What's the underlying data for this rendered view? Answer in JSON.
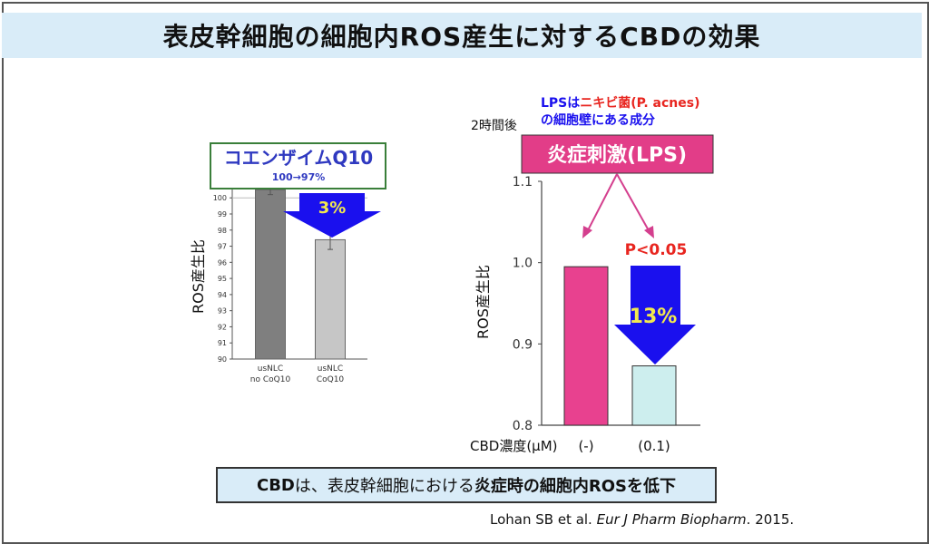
{
  "title": "表皮幹細胞の細胞内ROS産生に対するCBDの効果",
  "left_panel": {
    "label_box": "コエンザイムQ10",
    "sub_label": "100→97%",
    "decrease_label": "3%",
    "ylabel": "ROS産生比"
  },
  "right_panel": {
    "note_part1": "LPSは",
    "note_part2": "ニキビ菌(P. acnes)",
    "note_line2": "の細胞壁にある成分",
    "time_label": "2時間後",
    "stimulus_label": "炎症刺激(LPS)",
    "pvalue": "P<0.05",
    "decrease_label": "13%",
    "ylabel": "ROS産生比",
    "xaxis_prefix": "CBD濃度(μM)"
  },
  "summary": {
    "part1": "CBD",
    "part2": "は、表皮幹細胞における",
    "part3": "炎症時の細胞内ROSを低下"
  },
  "citation": {
    "authors": "Lohan SB et al. ",
    "journal": "Eur J Pharm Biopharm",
    "year": ". 2015."
  },
  "colors": {
    "title_bg": "#d9ecf8",
    "blue_arrow": "#1a10ee",
    "pink_bar": "#e8418f",
    "pale_bar": "#cdeeee",
    "dark_gray_bar": "#7f7f7f",
    "light_gray_bar": "#c6c6c6",
    "pvalue_red": "#e8251f",
    "label_blue": "#2f39c0",
    "yellow_text": "#f2e94e"
  },
  "chart_data": [
    {
      "type": "bar",
      "categories": [
        "usNLC\nno CoQ10",
        "usNLC\nCoQ10"
      ],
      "values": [
        100.5,
        97.4
      ],
      "errors": [
        0.3,
        0.6
      ],
      "ylim": [
        90,
        100.8
      ],
      "yticks": [
        90,
        91,
        92,
        93,
        94,
        95,
        96,
        97,
        98,
        99,
        100
      ],
      "ylabel": "ROS産生比",
      "xlabel": "",
      "title": "",
      "annotations": [
        "コエンザイムQ10",
        "100→97%",
        "3%"
      ]
    },
    {
      "type": "bar",
      "categories": [
        "(-)",
        "(0.1)"
      ],
      "values": [
        0.995,
        0.873
      ],
      "ylim": [
        0.8,
        1.1
      ],
      "yticks": [
        0.8,
        0.9,
        1.0,
        1.1
      ],
      "ytick_labels": [
        "0.8",
        "0.9",
        "1.0",
        "1.1"
      ],
      "ylabel": "ROS産生比",
      "xlabel": "CBD濃度(μM)",
      "title": "",
      "annotations": [
        "炎症刺激(LPS)",
        "P<0.05",
        "13%",
        "2時間後"
      ]
    }
  ]
}
